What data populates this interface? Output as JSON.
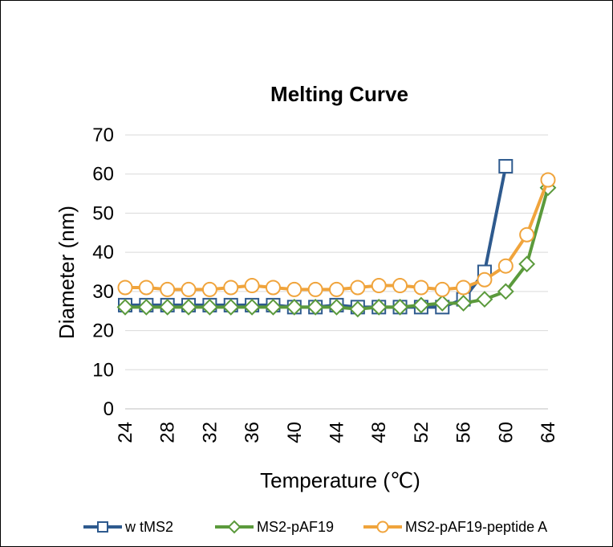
{
  "chart_data": {
    "type": "line",
    "title": "Melting Curve",
    "xlabel": "Temperature (℃)",
    "ylabel": "Diameter (nm)",
    "xlim": [
      24,
      64
    ],
    "ylim": [
      0,
      70
    ],
    "xticks": [
      "24",
      "28",
      "32",
      "36",
      "40",
      "44",
      "48",
      "52",
      "56",
      "60",
      "64"
    ],
    "yticks": [
      "0",
      "10",
      "20",
      "30",
      "40",
      "50",
      "60",
      "70"
    ],
    "grid": true,
    "legend_position": "bottom",
    "series": [
      {
        "name": "w tMS2",
        "color": "#2e5a8e",
        "marker": "square",
        "x": [
          24,
          26,
          28,
          30,
          32,
          34,
          36,
          38,
          40,
          42,
          44,
          46,
          48,
          50,
          52,
          54,
          56,
          58,
          60
        ],
        "y": [
          26.5,
          26.5,
          26.5,
          26.5,
          26.5,
          26.5,
          26.5,
          26.5,
          26.0,
          26.0,
          26.5,
          26.0,
          26.0,
          26.0,
          26.0,
          26.0,
          28.0,
          35.0,
          62.0
        ]
      },
      {
        "name": "MS2-pAF19",
        "color": "#5b9a3c",
        "marker": "diamond",
        "x": [
          24,
          26,
          28,
          30,
          32,
          34,
          36,
          38,
          40,
          42,
          44,
          46,
          48,
          50,
          52,
          54,
          56,
          58,
          60,
          62,
          64
        ],
        "y": [
          26.0,
          26.0,
          26.0,
          26.0,
          26.0,
          26.0,
          26.0,
          26.0,
          26.0,
          26.0,
          26.0,
          25.5,
          26.0,
          26.0,
          26.5,
          27.0,
          27.0,
          28.0,
          30.0,
          37.0,
          56.5
        ]
      },
      {
        "name": "MS2-pAF19-peptide A",
        "color": "#f0a43c",
        "marker": "circle",
        "x": [
          24,
          26,
          28,
          30,
          32,
          34,
          36,
          38,
          40,
          42,
          44,
          46,
          48,
          50,
          52,
          54,
          56,
          58,
          60,
          62,
          64
        ],
        "y": [
          31.0,
          31.0,
          30.5,
          30.5,
          30.5,
          31.0,
          31.5,
          31.0,
          30.5,
          30.5,
          30.5,
          31.0,
          31.5,
          31.5,
          31.0,
          30.5,
          31.0,
          33.0,
          36.5,
          44.5,
          58.5
        ]
      }
    ]
  }
}
